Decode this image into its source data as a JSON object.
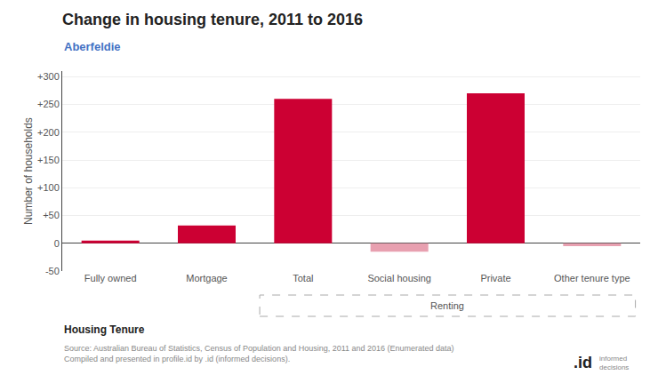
{
  "chart_data": {
    "type": "bar",
    "title": "Change in housing tenure, 2011 to 2016",
    "subtitle": "Aberfeldie",
    "categories": [
      "Fully owned",
      "Mortgage",
      "Total",
      "Social housing",
      "Private",
      "Other tenure type"
    ],
    "values": [
      5,
      32,
      260,
      -15,
      270,
      -5
    ],
    "colors": [
      "#cc0033",
      "#cc0033",
      "#cc0033",
      "#e8a0b0",
      "#cc0033",
      "#e8a0b0"
    ],
    "ylabel": "Number of households",
    "xlabel": "Housing Tenure",
    "ylim": [
      -50,
      310
    ],
    "yticks": [
      -50,
      0,
      {
        "value": 50,
        "label": "+50"
      },
      {
        "value": 100,
        "label": "+100"
      },
      {
        "value": 150,
        "label": "+150"
      },
      {
        "value": 200,
        "label": "+200"
      },
      {
        "value": 250,
        "label": "+250"
      },
      {
        "value": 300,
        "label": "+300"
      }
    ],
    "grid": true,
    "annotations": [
      {
        "text": "Renting",
        "categories": [
          "Total",
          "Other tenure type"
        ]
      },
      {
        "text": "Source: Australian Bureau of Statistics, Census of Population and Housing, 2011 and 2016 (Enumerated data)\nCompiled and presented in profile.id by .id (informed decisions)."
      },
      {
        "text": ".id"
      },
      {
        "text": "informed\ndecisions"
      }
    ]
  }
}
